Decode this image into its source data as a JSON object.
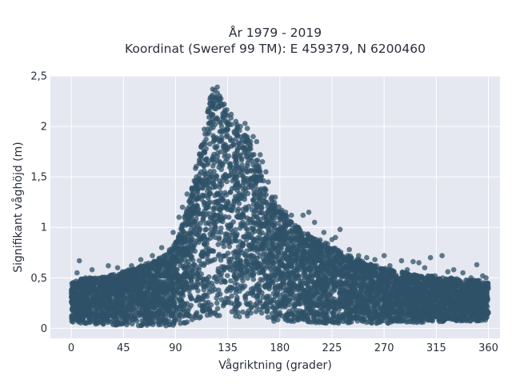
{
  "chart_data": {
    "type": "scatter",
    "title_line1": "År 1979 - 2019",
    "title_line2": "Koordinat (Sweref 99 TM): E 459379, N 6200460",
    "xlabel": "Vågriktning (grader)",
    "ylabel": "Signifikant våghöjd (m)",
    "xlim": [
      -18,
      370
    ],
    "ylim": [
      -0.1,
      2.5
    ],
    "x_ticks": [
      0,
      45,
      90,
      135,
      180,
      225,
      270,
      315,
      360
    ],
    "x_tick_labels": [
      "0",
      "45",
      "90",
      "135",
      "180",
      "225",
      "270",
      "315",
      "360"
    ],
    "y_ticks": [
      0,
      0.5,
      1,
      1.5,
      2,
      2.5
    ],
    "y_tick_labels": [
      "0",
      "0,5",
      "1",
      "1,5",
      "2",
      "2,5"
    ],
    "grid": true,
    "point_color": "#2f5168",
    "background_color": "#e5e8f0",
    "series": [
      {
        "envelope_x": [
          0,
          10,
          20,
          30,
          40,
          50,
          60,
          70,
          80,
          90,
          95,
          100,
          105,
          110,
          115,
          120,
          125,
          130,
          135,
          140,
          145,
          150,
          155,
          160,
          165,
          170,
          180,
          190,
          200,
          210,
          220,
          230,
          240,
          250,
          260,
          270,
          280,
          290,
          300,
          310,
          320,
          330,
          340,
          350,
          360
        ],
        "envelope_ymax": [
          0.45,
          0.5,
          0.5,
          0.52,
          0.55,
          0.58,
          0.62,
          0.66,
          0.72,
          0.85,
          1.0,
          1.2,
          1.45,
          1.75,
          2.05,
          2.3,
          2.38,
          2.3,
          2.15,
          2.05,
          2.0,
          1.95,
          1.88,
          1.7,
          1.5,
          1.35,
          1.2,
          1.05,
          0.97,
          0.9,
          0.85,
          0.78,
          0.72,
          0.68,
          0.63,
          0.6,
          0.57,
          0.55,
          0.52,
          0.52,
          0.5,
          0.5,
          0.48,
          0.48,
          0.45
        ],
        "envelope_ymin": [
          0.05,
          0.05,
          0.04,
          0.04,
          0.03,
          0.03,
          0.02,
          0.02,
          0.02,
          0.03,
          0.04,
          0.05,
          0.06,
          0.08,
          0.1,
          0.12,
          0.12,
          0.12,
          0.11,
          0.1,
          0.1,
          0.09,
          0.08,
          0.08,
          0.07,
          0.07,
          0.06,
          0.06,
          0.05,
          0.05,
          0.05,
          0.05,
          0.05,
          0.05,
          0.05,
          0.05,
          0.05,
          0.05,
          0.06,
          0.06,
          0.06,
          0.07,
          0.07,
          0.07,
          0.08
        ]
      }
    ],
    "outliers": [
      [
        5,
        0.55
      ],
      [
        7,
        0.67
      ],
      [
        18,
        0.58
      ],
      [
        32,
        0.62
      ],
      [
        40,
        0.6
      ],
      [
        52,
        0.62
      ],
      [
        60,
        0.68
      ],
      [
        70,
        0.72
      ],
      [
        78,
        0.8
      ],
      [
        88,
        0.95
      ],
      [
        93,
        1.1
      ],
      [
        96,
        1.2
      ],
      [
        100,
        1.33
      ],
      [
        104,
        1.3
      ],
      [
        108,
        1.5
      ],
      [
        112,
        1.8
      ],
      [
        118,
        2.15
      ],
      [
        122,
        2.37
      ],
      [
        126,
        2.39
      ],
      [
        128,
        2.28
      ],
      [
        132,
        2.22
      ],
      [
        138,
        2.12
      ],
      [
        142,
        2.05
      ],
      [
        146,
        2.0
      ],
      [
        150,
        2.03
      ],
      [
        152,
        1.98
      ],
      [
        157,
        1.9
      ],
      [
        160,
        1.85
      ],
      [
        163,
        1.72
      ],
      [
        165,
        1.65
      ],
      [
        168,
        1.55
      ],
      [
        170,
        1.45
      ],
      [
        176,
        1.3
      ],
      [
        185,
        1.15
      ],
      [
        190,
        1.12
      ],
      [
        200,
        1.12
      ],
      [
        205,
        1.15
      ],
      [
        210,
        1.05
      ],
      [
        218,
        0.95
      ],
      [
        225,
        0.88
      ],
      [
        232,
        0.98
      ],
      [
        228,
        0.9
      ],
      [
        240,
        0.78
      ],
      [
        248,
        0.72
      ],
      [
        255,
        0.7
      ],
      [
        262,
        0.68
      ],
      [
        270,
        0.72
      ],
      [
        275,
        0.62
      ],
      [
        285,
        0.67
      ],
      [
        290,
        0.58
      ],
      [
        295,
        0.66
      ],
      [
        300,
        0.65
      ],
      [
        305,
        0.6
      ],
      [
        310,
        0.7
      ],
      [
        314,
        0.52
      ],
      [
        320,
        0.72
      ],
      [
        325,
        0.56
      ],
      [
        330,
        0.58
      ],
      [
        338,
        0.55
      ],
      [
        345,
        0.5
      ],
      [
        350,
        0.63
      ],
      [
        355,
        0.52
      ],
      [
        358,
        0.5
      ]
    ]
  }
}
